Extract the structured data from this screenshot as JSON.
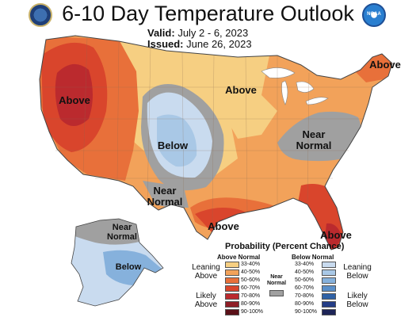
{
  "header": {
    "title": "6-10 Day Temperature Outlook",
    "valid_label": "Valid:",
    "valid_value": "July 2 - 6, 2023",
    "issued_label": "Issued:",
    "issued_value": "June 26, 2023"
  },
  "logos": {
    "left_icon": "doc-seal-icon",
    "right_icon": "noaa-logo-icon",
    "right_text": "NOAA"
  },
  "map_labels": {
    "above_west": "Above",
    "above_northeast": "Above",
    "above_central": "Above",
    "below_rockies": "Below",
    "near_normal_east_1": "Near",
    "near_normal_east_2": "Normal",
    "near_normal_texas_1": "Near",
    "near_normal_texas_2": "Normal",
    "above_gulf": "Above",
    "above_florida": "Above",
    "alaska_near_1": "Near",
    "alaska_near_2": "Normal",
    "alaska_below": "Below"
  },
  "legend": {
    "title": "Probability (Percent Chance)",
    "above_header": "Above Normal",
    "below_header": "Below Normal",
    "near_label_1": "Near",
    "near_label_2": "Normal",
    "leaning_above_1": "Leaning",
    "leaning_above_2": "Above",
    "likely_above_1": "Likely",
    "likely_above_2": "Above",
    "leaning_below_1": "Leaning",
    "leaning_below_2": "Below",
    "likely_below_1": "Likely",
    "likely_below_2": "Below",
    "ranges": [
      "33-40%",
      "40-50%",
      "50-60%",
      "60-70%",
      "70-80%",
      "80-90%",
      "90-100%"
    ],
    "above_colors": [
      "#f6cf82",
      "#f2a25a",
      "#e8703a",
      "#d9452c",
      "#bb2a2e",
      "#8f1e26",
      "#5a1018"
    ],
    "below_colors": [
      "#c9dbef",
      "#a9c8e6",
      "#86b1dc",
      "#5a8fc9",
      "#2f62a6",
      "#243d86",
      "#1d2457"
    ],
    "near_color": "#a0a0a0"
  }
}
